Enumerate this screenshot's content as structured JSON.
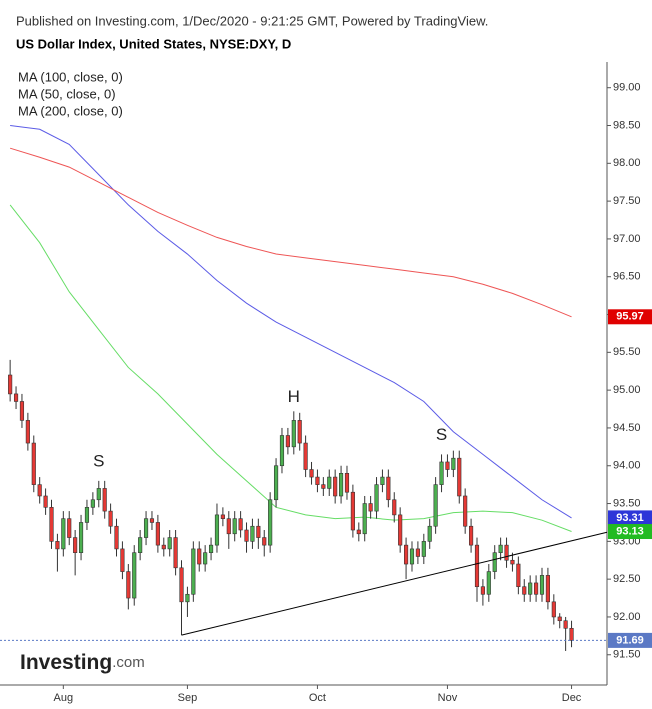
{
  "header": "Published on Investing.com, 1/Dec/2020 - 9:21:25 GMT, Powered by TradingView.",
  "logo": {
    "name": "Investing",
    "suffix": ".com"
  },
  "chart_data": {
    "type": "candlestick",
    "title": "US Dollar Index, United States, NYSE:DXY, D",
    "up_color": "#4caf50",
    "down_color": "#e53935",
    "open": [
      95.2,
      94.95,
      94.85,
      94.6,
      94.3,
      93.75,
      93.6,
      93.45,
      93.0,
      92.9,
      93.3,
      93.05,
      92.85,
      93.25,
      93.45,
      93.55,
      93.7,
      93.4,
      93.2,
      92.9,
      92.6,
      92.25,
      92.85,
      93.05,
      93.3,
      93.25,
      92.95,
      92.9,
      93.05,
      92.65,
      92.2,
      92.3,
      92.9,
      92.7,
      92.85,
      92.95,
      93.35,
      93.3,
      93.1,
      93.3,
      93.15,
      93.0,
      93.2,
      93.05,
      92.95,
      93.55,
      94.0,
      94.4,
      94.25,
      94.6,
      94.3,
      93.95,
      93.85,
      93.75,
      93.7,
      93.85,
      93.6,
      93.9,
      93.65,
      93.15,
      93.1,
      93.5,
      93.4,
      93.75,
      93.85,
      93.55,
      93.35,
      92.95,
      92.7,
      92.9,
      92.8,
      93.0,
      93.2,
      93.75,
      94.05,
      93.95,
      94.1,
      93.6,
      93.2,
      92.95,
      92.4,
      92.3,
      92.6,
      92.85,
      92.95,
      92.75,
      92.7,
      92.4,
      92.3,
      92.45,
      92.3,
      92.55,
      92.2,
      92.0,
      91.95,
      91.85
    ],
    "high": [
      95.4,
      95.05,
      94.95,
      94.7,
      94.4,
      93.85,
      93.7,
      93.55,
      93.1,
      93.4,
      93.4,
      93.15,
      93.35,
      93.55,
      93.65,
      93.8,
      93.8,
      93.5,
      93.3,
      93.0,
      92.7,
      92.95,
      93.15,
      93.4,
      93.4,
      93.35,
      93.05,
      93.15,
      93.15,
      92.75,
      92.4,
      93.0,
      93.0,
      92.95,
      93.05,
      93.5,
      93.45,
      93.4,
      93.4,
      93.4,
      93.25,
      93.3,
      93.3,
      93.15,
      93.65,
      94.1,
      94.5,
      94.5,
      94.72,
      94.7,
      94.4,
      94.05,
      93.95,
      93.85,
      93.95,
      93.95,
      94.0,
      94.0,
      93.75,
      93.25,
      93.6,
      93.6,
      93.85,
      93.95,
      93.95,
      93.65,
      93.45,
      93.05,
      93.0,
      93.0,
      93.1,
      93.3,
      93.85,
      94.15,
      94.15,
      94.2,
      94.2,
      93.7,
      93.3,
      93.05,
      92.5,
      92.7,
      92.95,
      93.05,
      93.05,
      92.85,
      92.8,
      92.5,
      92.55,
      92.55,
      92.65,
      92.65,
      92.3,
      92.05,
      92.0,
      91.95
    ],
    "low": [
      94.85,
      94.75,
      94.5,
      94.2,
      93.65,
      93.5,
      93.35,
      92.9,
      92.6,
      92.8,
      92.95,
      92.55,
      92.75,
      93.15,
      93.35,
      93.45,
      93.3,
      93.1,
      92.8,
      92.5,
      92.1,
      92.15,
      92.75,
      92.95,
      93.15,
      92.85,
      92.8,
      92.8,
      92.55,
      91.76,
      92.0,
      92.2,
      92.6,
      92.6,
      92.75,
      92.85,
      93.2,
      92.9,
      93.0,
      93.05,
      92.85,
      92.9,
      92.9,
      92.8,
      92.85,
      93.45,
      93.9,
      94.15,
      94.15,
      94.2,
      93.85,
      93.75,
      93.65,
      93.6,
      93.6,
      93.5,
      93.5,
      93.55,
      93.05,
      93.0,
      93.0,
      93.3,
      93.3,
      93.65,
      93.45,
      93.25,
      92.85,
      92.5,
      92.6,
      92.7,
      92.7,
      92.9,
      93.1,
      93.65,
      93.85,
      93.85,
      93.5,
      93.1,
      92.85,
      92.2,
      92.15,
      92.2,
      92.5,
      92.75,
      92.65,
      92.6,
      92.3,
      92.2,
      92.2,
      92.2,
      92.2,
      92.1,
      91.9,
      91.85,
      91.55,
      91.6
    ],
    "close": [
      94.95,
      94.85,
      94.6,
      94.3,
      93.75,
      93.6,
      93.45,
      93.0,
      92.9,
      93.3,
      93.05,
      92.85,
      93.25,
      93.45,
      93.55,
      93.7,
      93.4,
      93.2,
      92.9,
      92.6,
      92.25,
      92.85,
      93.05,
      93.3,
      93.25,
      92.95,
      92.9,
      93.05,
      92.65,
      92.2,
      92.3,
      92.9,
      92.7,
      92.85,
      92.95,
      93.35,
      93.3,
      93.1,
      93.3,
      93.15,
      93.0,
      93.2,
      93.05,
      92.95,
      93.55,
      94.0,
      94.4,
      94.25,
      94.6,
      94.3,
      93.95,
      93.85,
      93.75,
      93.7,
      93.85,
      93.6,
      93.9,
      93.65,
      93.15,
      93.1,
      93.5,
      93.4,
      93.75,
      93.85,
      93.55,
      93.35,
      92.95,
      92.7,
      92.9,
      92.8,
      93.0,
      93.2,
      93.75,
      94.05,
      93.95,
      94.1,
      93.6,
      93.2,
      92.95,
      92.4,
      92.3,
      92.6,
      92.85,
      92.95,
      92.75,
      92.7,
      92.4,
      92.3,
      92.45,
      92.3,
      92.55,
      92.2,
      92.0,
      91.95,
      91.85,
      91.69
    ],
    "series": [
      {
        "name": "MA (100, close, 0)",
        "color": "#5b5be6",
        "x": [
          0,
          5,
          10,
          15,
          20,
          25,
          30,
          35,
          40,
          45,
          50,
          55,
          60,
          65,
          70,
          75,
          80,
          85,
          90,
          95
        ],
        "values": [
          98.5,
          98.45,
          98.25,
          97.85,
          97.45,
          97.1,
          96.8,
          96.45,
          96.15,
          95.9,
          95.7,
          95.5,
          95.3,
          95.1,
          94.85,
          94.45,
          94.15,
          93.85,
          93.55,
          93.31
        ]
      },
      {
        "name": "MA (50, close, 0)",
        "color": "#66dd66",
        "x": [
          0,
          5,
          10,
          15,
          20,
          25,
          30,
          35,
          40,
          45,
          50,
          55,
          60,
          65,
          70,
          75,
          80,
          85,
          90,
          95
        ],
        "values": [
          97.45,
          96.95,
          96.3,
          95.8,
          95.3,
          94.95,
          94.55,
          94.15,
          93.8,
          93.45,
          93.35,
          93.3,
          93.32,
          93.28,
          93.3,
          93.38,
          93.4,
          93.38,
          93.28,
          93.13
        ]
      },
      {
        "name": "MA (200, close, 0)",
        "color": "#ee5555",
        "x": [
          0,
          5,
          10,
          15,
          20,
          25,
          30,
          35,
          40,
          45,
          50,
          55,
          60,
          65,
          70,
          75,
          80,
          85,
          90,
          95
        ],
        "values": [
          98.2,
          98.08,
          97.95,
          97.75,
          97.55,
          97.35,
          97.18,
          97.02,
          96.9,
          96.8,
          96.75,
          96.7,
          96.65,
          96.6,
          96.55,
          96.5,
          96.4,
          96.28,
          96.13,
          95.97
        ]
      }
    ],
    "price_labels": [
      {
        "value": 95.97,
        "label": "95.97",
        "color": "#e00000"
      },
      {
        "value": 93.31,
        "label": "93.31",
        "color": "#2d36d8"
      },
      {
        "value": 93.13,
        "label": "93.13",
        "color": "#22bb22"
      },
      {
        "value": 91.69,
        "label": "91.69",
        "color": "#5b79c5"
      }
    ],
    "current_price": 91.69,
    "trendline": {
      "x": [
        29,
        101
      ],
      "values": [
        91.76,
        93.12
      ]
    },
    "annotations": [
      {
        "text": "S",
        "x": 15,
        "value": 94.05
      },
      {
        "text": "H",
        "x": 48,
        "value": 94.9
      },
      {
        "text": "S",
        "x": 73,
        "value": 94.4
      }
    ],
    "xlim": [
      -0.7,
      101
    ],
    "xticks": [
      {
        "value": 9,
        "label": "Aug"
      },
      {
        "value": 30,
        "label": "Sep"
      },
      {
        "value": 52,
        "label": "Oct"
      },
      {
        "value": 74,
        "label": "Nov"
      },
      {
        "value": 95,
        "label": "Dec"
      }
    ],
    "ylim": [
      91.1,
      99.34
    ],
    "yticks": [
      {
        "value": 91.5,
        "label": "91.50"
      },
      {
        "value": 92,
        "label": "92.00"
      },
      {
        "value": 92.5,
        "label": "92.50"
      },
      {
        "value": 93,
        "label": "93.00"
      },
      {
        "value": 93.5,
        "label": "93.50"
      },
      {
        "value": 94,
        "label": "94.00"
      },
      {
        "value": 94.5,
        "label": "94.50"
      },
      {
        "value": 95,
        "label": "95.00"
      },
      {
        "value": 95.5,
        "label": "95.50"
      },
      {
        "value": 96,
        "label": "96.00"
      },
      {
        "value": 96.5,
        "label": "96.50"
      },
      {
        "value": 97,
        "label": "97.00"
      },
      {
        "value": 97.5,
        "label": "97.50"
      },
      {
        "value": 98,
        "label": "98.00"
      },
      {
        "value": 98.5,
        "label": "98.50"
      },
      {
        "value": 99,
        "label": "99.00"
      }
    ]
  }
}
